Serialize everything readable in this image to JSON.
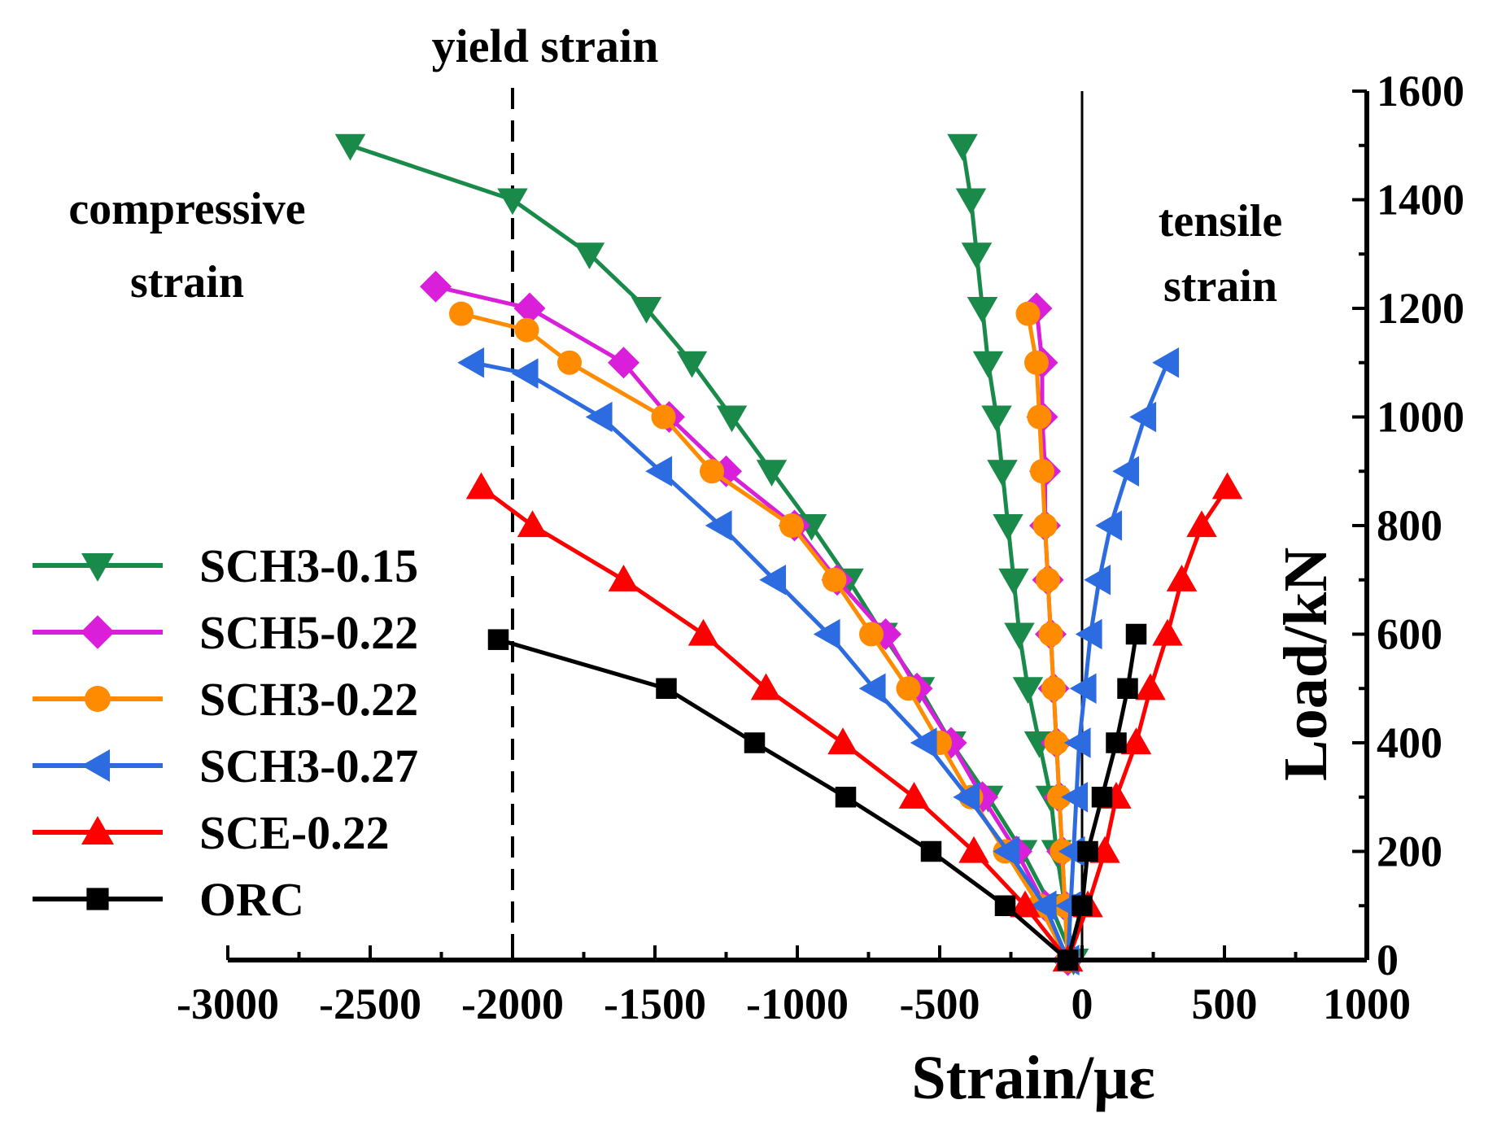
{
  "chart_data": {
    "type": "line",
    "xlabel": "Strain/με",
    "ylabel": "Load/kN",
    "xlim": [
      -3000,
      1000
    ],
    "ylim": [
      0,
      1600
    ],
    "xticks": [
      -3000,
      -2500,
      -2000,
      -1500,
      -1000,
      -500,
      0,
      500,
      1000
    ],
    "xtick_labels": [
      "-3000",
      "-2500",
      "-2000",
      "-1500",
      "-1000",
      "-500",
      "0",
      "500",
      "1000"
    ],
    "yticks": [
      0,
      200,
      400,
      600,
      800,
      1000,
      1200,
      1400,
      1600
    ],
    "ytick_labels": [
      "0",
      "200",
      "400",
      "600",
      "800",
      "1000",
      "1200",
      "1400",
      "1600"
    ],
    "y_axis_side": "right",
    "grid": false,
    "legend_position": "left",
    "reference_lines": [
      {
        "x": -2000,
        "style": "dashed",
        "label": "yield strain"
      },
      {
        "x": 0,
        "style": "solid"
      }
    ],
    "annotations": {
      "compressive_line1": "compressive",
      "compressive_line2": "strain",
      "tensile_line1": "tensile",
      "tensile_line2": "strain",
      "yield": "yield strain"
    },
    "series": [
      {
        "name": "SCH3-0.15",
        "color": "#1a8a4a",
        "marker": "triangle-down",
        "branches": [
          [
            [
              -2570,
              1500
            ],
            [
              -2000,
              1400
            ],
            [
              -1730,
              1300
            ],
            [
              -1530,
              1200
            ],
            [
              -1370,
              1100
            ],
            [
              -1230,
              1000
            ],
            [
              -1090,
              900
            ],
            [
              -950,
              800
            ],
            [
              -820,
              700
            ],
            [
              -700,
              600
            ],
            [
              -570,
              500
            ],
            [
              -460,
              400
            ],
            [
              -330,
              300
            ],
            [
              -210,
              200
            ],
            [
              -110,
              100
            ],
            [
              -30,
              0
            ]
          ],
          [
            [
              -420,
              1500
            ],
            [
              -390,
              1400
            ],
            [
              -370,
              1300
            ],
            [
              -350,
              1200
            ],
            [
              -330,
              1100
            ],
            [
              -300,
              1000
            ],
            [
              -280,
              900
            ],
            [
              -260,
              800
            ],
            [
              -240,
              700
            ],
            [
              -220,
              600
            ],
            [
              -190,
              500
            ],
            [
              -150,
              400
            ],
            [
              -110,
              300
            ],
            [
              -90,
              200
            ],
            [
              -60,
              100
            ],
            [
              -30,
              0
            ]
          ]
        ]
      },
      {
        "name": "SCH5-0.22",
        "color": "#d91fd9",
        "marker": "diamond",
        "branches": [
          [
            [
              -2270,
              1240
            ],
            [
              -1940,
              1200
            ],
            [
              -1610,
              1100
            ],
            [
              -1450,
              1000
            ],
            [
              -1250,
              900
            ],
            [
              -1010,
              800
            ],
            [
              -860,
              700
            ],
            [
              -690,
              600
            ],
            [
              -580,
              500
            ],
            [
              -460,
              400
            ],
            [
              -350,
              300
            ],
            [
              -230,
              200
            ],
            [
              -130,
              100
            ],
            [
              -50,
              0
            ]
          ],
          [
            [
              -160,
              1200
            ],
            [
              -140,
              1100
            ],
            [
              -140,
              1000
            ],
            [
              -130,
              900
            ],
            [
              -130,
              800
            ],
            [
              -120,
              700
            ],
            [
              -110,
              600
            ],
            [
              -100,
              500
            ],
            [
              -90,
              400
            ],
            [
              -80,
              300
            ],
            [
              -70,
              200
            ],
            [
              -60,
              100
            ],
            [
              -50,
              0
            ]
          ]
        ]
      },
      {
        "name": "SCH3-0.22",
        "color": "#ff8c00",
        "marker": "circle",
        "branches": [
          [
            [
              -2180,
              1190
            ],
            [
              -1950,
              1160
            ],
            [
              -1800,
              1100
            ],
            [
              -1470,
              1000
            ],
            [
              -1300,
              900
            ],
            [
              -1020,
              800
            ],
            [
              -870,
              700
            ],
            [
              -740,
              600
            ],
            [
              -610,
              500
            ],
            [
              -500,
              400
            ],
            [
              -390,
              300
            ],
            [
              -270,
              200
            ],
            [
              -150,
              100
            ],
            [
              -50,
              0
            ]
          ],
          [
            [
              -190,
              1190
            ],
            [
              -160,
              1100
            ],
            [
              -150,
              1000
            ],
            [
              -140,
              900
            ],
            [
              -130,
              800
            ],
            [
              -120,
              700
            ],
            [
              -110,
              600
            ],
            [
              -100,
              500
            ],
            [
              -90,
              400
            ],
            [
              -80,
              300
            ],
            [
              -70,
              200
            ],
            [
              -60,
              100
            ],
            [
              -50,
              0
            ]
          ]
        ]
      },
      {
        "name": "SCH3-0.27",
        "color": "#2d6be0",
        "marker": "triangle-left",
        "branches": [
          [
            [
              -2140,
              1100
            ],
            [
              -1950,
              1080
            ],
            [
              -1690,
              1000
            ],
            [
              -1480,
              900
            ],
            [
              -1270,
              800
            ],
            [
              -1080,
              700
            ],
            [
              -890,
              600
            ],
            [
              -730,
              500
            ],
            [
              -550,
              400
            ],
            [
              -400,
              300
            ],
            [
              -260,
              200
            ],
            [
              -130,
              100
            ],
            [
              -50,
              0
            ]
          ],
          [
            [
              300,
              1100
            ],
            [
              220,
              1000
            ],
            [
              160,
              900
            ],
            [
              100,
              800
            ],
            [
              60,
              700
            ],
            [
              30,
              600
            ],
            [
              10,
              500
            ],
            [
              -10,
              400
            ],
            [
              -20,
              300
            ],
            [
              -30,
              200
            ],
            [
              -40,
              100
            ],
            [
              -50,
              0
            ]
          ]
        ]
      },
      {
        "name": "SCE-0.22",
        "color": "#ff0000",
        "marker": "triangle-up",
        "branches": [
          [
            [
              -2110,
              870
            ],
            [
              -1930,
              800
            ],
            [
              -1610,
              700
            ],
            [
              -1330,
              600
            ],
            [
              -1110,
              500
            ],
            [
              -840,
              400
            ],
            [
              -590,
              300
            ],
            [
              -380,
              200
            ],
            [
              -200,
              100
            ],
            [
              -50,
              0
            ]
          ],
          [
            [
              510,
              870
            ],
            [
              420,
              800
            ],
            [
              350,
              700
            ],
            [
              300,
              600
            ],
            [
              240,
              500
            ],
            [
              190,
              400
            ],
            [
              120,
              300
            ],
            [
              80,
              200
            ],
            [
              20,
              100
            ],
            [
              -50,
              0
            ]
          ]
        ]
      },
      {
        "name": "ORC",
        "color": "#000000",
        "marker": "square",
        "branches": [
          [
            [
              -2050,
              590
            ],
            [
              -1460,
              500
            ],
            [
              -1150,
              400
            ],
            [
              -830,
              300
            ],
            [
              -530,
              200
            ],
            [
              -270,
              100
            ],
            [
              -50,
              0
            ]
          ],
          [
            [
              190,
              600
            ],
            [
              160,
              500
            ],
            [
              120,
              400
            ],
            [
              70,
              300
            ],
            [
              20,
              200
            ],
            [
              0,
              100
            ],
            [
              -50,
              0
            ]
          ]
        ]
      }
    ]
  }
}
